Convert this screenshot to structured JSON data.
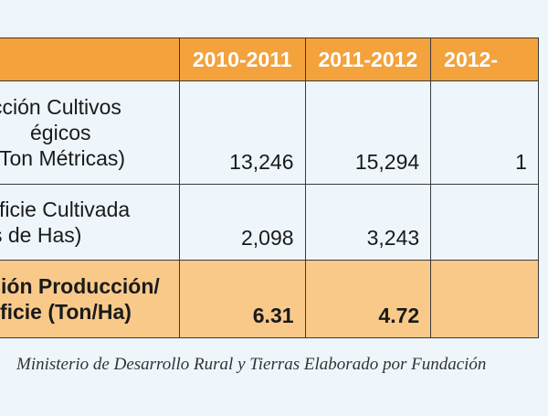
{
  "table": {
    "header": {
      "label": "",
      "years": [
        "2010-2011",
        "2011-2012",
        "2012-"
      ]
    },
    "rows": [
      {
        "label_lines": [
          "cción Cultivos",
          "égicos",
          "Ton Métricas)"
        ],
        "values": [
          "13,246",
          "15,294",
          "1"
        ]
      },
      {
        "label_lines": [
          "ficie Cultivada",
          "s de Has)"
        ],
        "values": [
          "2,098",
          "3,243",
          ""
        ]
      },
      {
        "label_lines": [
          "ión Producción/",
          "rficie (Ton/Ha)"
        ],
        "values": [
          "6.31",
          "4.72",
          ""
        ]
      }
    ]
  },
  "footer": {
    "source_text": "Ministerio de Desarrollo Rural y Tierras  Elaborado por Fundación"
  },
  "colors": {
    "header_bg": "#f3a23c",
    "highlight_row_bg": "#f9c98a",
    "page_bg": "#eef6fc"
  }
}
